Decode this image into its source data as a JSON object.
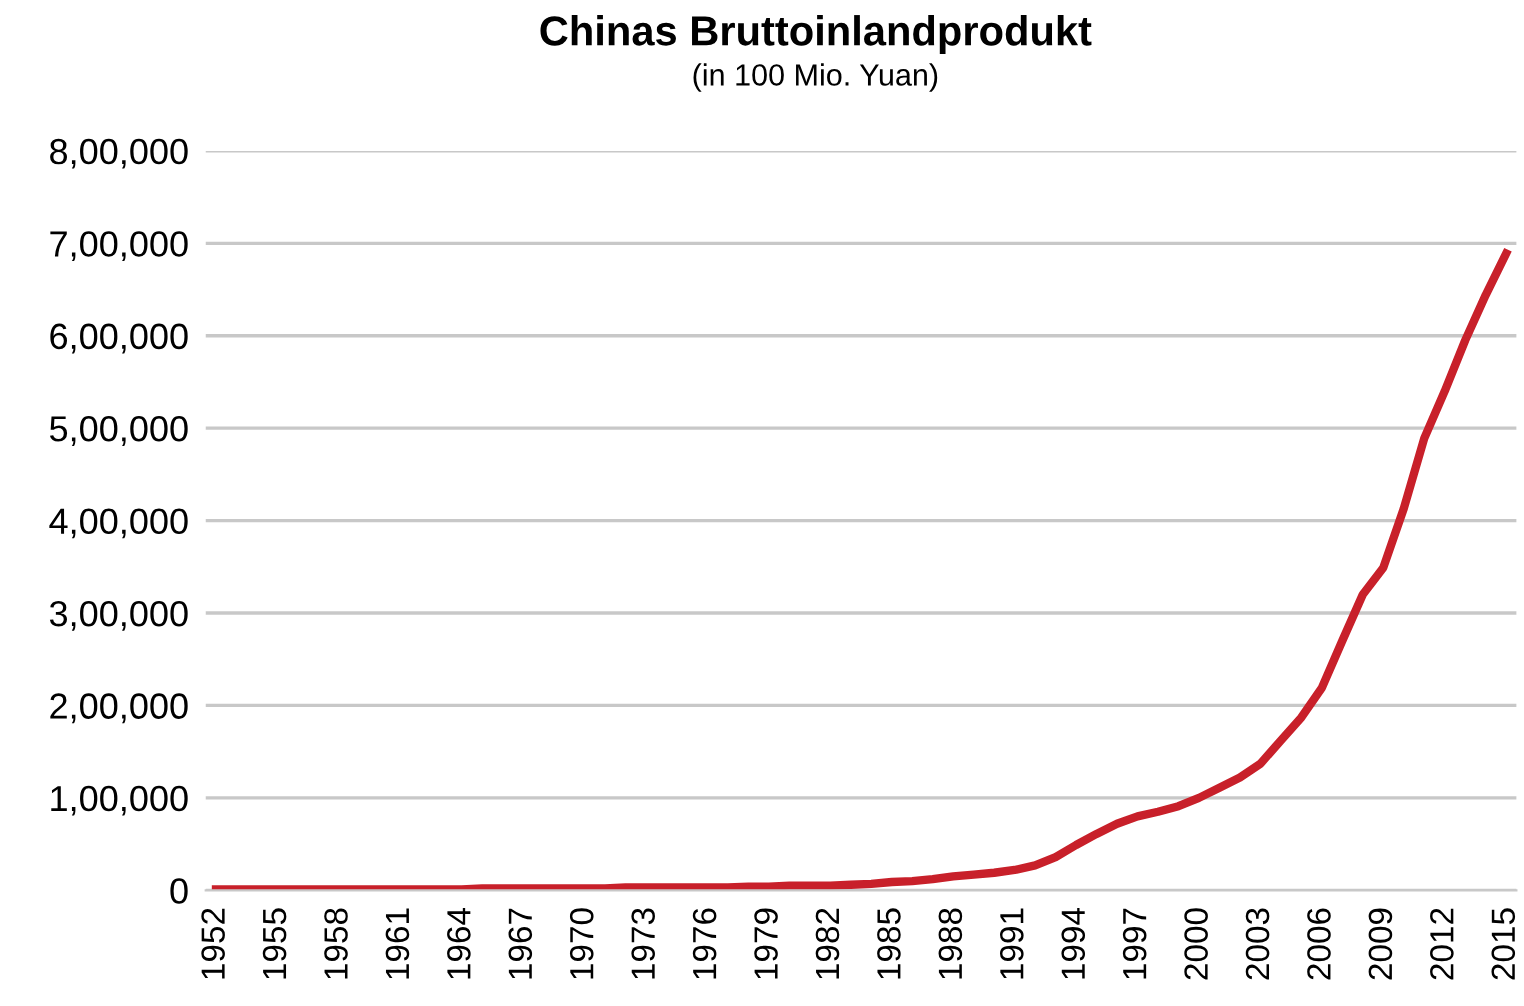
{
  "chart_data": {
    "type": "line",
    "title": "Chinas Bruttoinlandprodukt",
    "subtitle": "(in 100 Mio. Yuan)",
    "categories": [
      "1952",
      null,
      null,
      "1955",
      null,
      null,
      "1958",
      null,
      null,
      "1961",
      null,
      null,
      "1964",
      null,
      null,
      "1967",
      null,
      null,
      "1970",
      null,
      null,
      "1973",
      null,
      null,
      "1976",
      null,
      null,
      "1979",
      null,
      null,
      "1982",
      null,
      null,
      "1985",
      null,
      null,
      "1988",
      null,
      null,
      "1991",
      null,
      null,
      "1994",
      null,
      null,
      "1997",
      null,
      null,
      "2000",
      null,
      null,
      "2003",
      null,
      null,
      "2006",
      null,
      null,
      "2009",
      null,
      null,
      "2012",
      null,
      null,
      "2015"
    ],
    "series": [
      {
        "color": "#c8202a",
        "values": [
          1000,
          1000,
          1000,
          1000,
          1000,
          1000,
          1000,
          1000,
          1000,
          1000,
          1000,
          1000,
          1000,
          2000,
          2000,
          2000,
          2000,
          2000,
          2000,
          2000,
          3000,
          3000,
          3000,
          3000,
          3000,
          3000,
          4000,
          4000,
          5000,
          5000,
          5000,
          6000,
          7000,
          9000,
          10000,
          12000,
          15000,
          17000,
          19000,
          22000,
          27000,
          36000,
          49000,
          61000,
          72000,
          80000,
          85000,
          91000,
          100000,
          111000,
          122000,
          137000,
          162000,
          187000,
          219000,
          270000,
          320000,
          349000,
          413000,
          489000,
          540000,
          595000,
          644000,
          689000
        ]
      }
    ],
    "ylim": [
      0,
      800000
    ],
    "yticks": [
      0,
      {
        "value": 100000,
        "label": "1,00,000"
      },
      {
        "value": 200000,
        "label": "2,00,000"
      },
      {
        "value": 300000,
        "label": "3,00,000"
      },
      {
        "value": 400000,
        "label": "4,00,000"
      },
      {
        "value": 500000,
        "label": "5,00,000"
      },
      {
        "value": 600000,
        "label": "6,00,000"
      },
      {
        "value": 700000,
        "label": "7,00,000"
      },
      {
        "value": 800000,
        "label": "8,00,000"
      }
    ],
    "grid": "y",
    "line_style": "solid"
  }
}
